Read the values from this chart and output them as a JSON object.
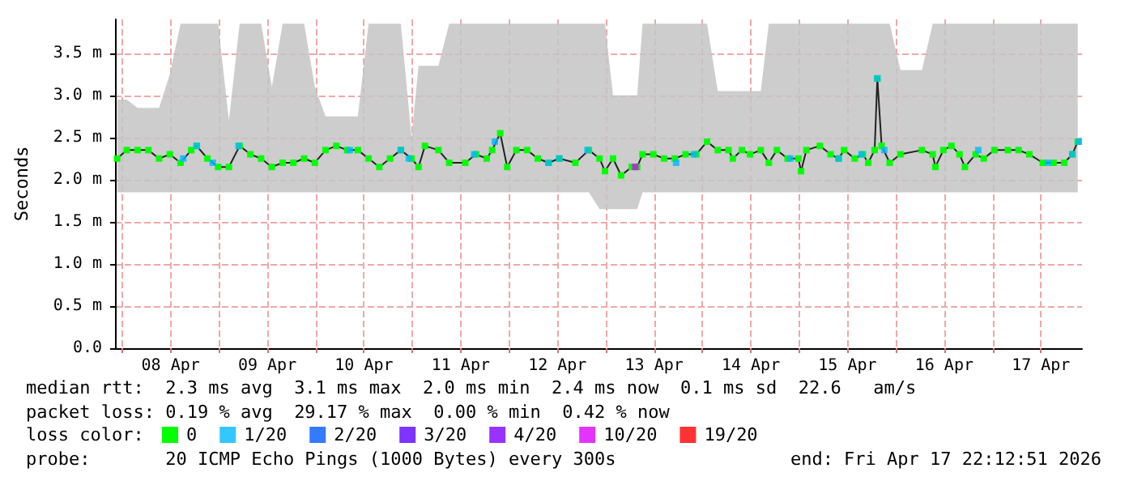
{
  "chart_data": {
    "type": "line",
    "ylabel": "Seconds",
    "legend_title": "loss color:",
    "legend": "bottom",
    "grid": true,
    "marker": "square",
    "line_style": "solid",
    "annotations": [
      "median rtt:  2.3 ms avg  3.1 ms max  2.0 ms min  2.4 ms now  0.1 ms sd  22.6   am/s",
      "packet loss: 0.19 % avg  29.17 % max  0.00 % min  0.42 % now",
      "probe:       20 ICMP Echo Pings (1000 Bytes) every 300s",
      "end: Fri Apr 17 22:12:51 2026"
    ],
    "xlim": [
      "2026-04-07T22:12",
      "2026-04-17T22:12"
    ],
    "xticks": [
      {
        "value": "2026-04-08T00:00",
        "label": null
      },
      {
        "value": "2026-04-08T12:00",
        "label": "08 Apr"
      },
      {
        "value": "2026-04-09T00:00",
        "label": null
      },
      {
        "value": "2026-04-09T12:00",
        "label": "09 Apr"
      },
      {
        "value": "2026-04-10T00:00",
        "label": null
      },
      {
        "value": "2026-04-10T12:00",
        "label": "10 Apr"
      },
      {
        "value": "2026-04-11T00:00",
        "label": null
      },
      {
        "value": "2026-04-11T12:00",
        "label": "11 Apr"
      },
      {
        "value": "2026-04-12T00:00",
        "label": null
      },
      {
        "value": "2026-04-12T12:00",
        "label": "12 Apr"
      },
      {
        "value": "2026-04-13T00:00",
        "label": null
      },
      {
        "value": "2026-04-13T12:00",
        "label": "13 Apr"
      },
      {
        "value": "2026-04-14T00:00",
        "label": null
      },
      {
        "value": "2026-04-14T12:00",
        "label": "14 Apr"
      },
      {
        "value": "2026-04-15T00:00",
        "label": null
      },
      {
        "value": "2026-04-15T12:00",
        "label": "15 Apr"
      },
      {
        "value": "2026-04-16T00:00",
        "label": null
      },
      {
        "value": "2026-04-16T12:00",
        "label": "16 Apr"
      },
      {
        "value": "2026-04-17T00:00",
        "label": null
      },
      {
        "value": "2026-04-17T12:00",
        "label": "17 Apr"
      }
    ],
    "ylim": [
      0,
      3.9
    ],
    "yticks": [
      {
        "value": 0,
        "label": "0.0"
      },
      {
        "value": 0.5,
        "label": "0.5 m"
      },
      {
        "value": 1,
        "label": "1.0 m"
      },
      {
        "value": 1.5,
        "label": "1.5 m"
      },
      {
        "value": 2,
        "label": "2.0 m"
      },
      {
        "value": 2.5,
        "label": "2.5 m"
      },
      {
        "value": 3,
        "label": "3.0 m"
      },
      {
        "value": 3.5,
        "label": "3.5 m"
      }
    ],
    "series": [
      {
        "name": "0",
        "color": "#00ff00",
        "x": [
          "2026-04-07T22:44",
          "2026-04-08T01:08",
          "2026-04-08T03:48",
          "2026-04-08T06:28",
          "2026-04-08T09:08",
          "2026-04-08T11:48",
          "2026-04-08T14:28",
          "2026-04-08T17:08",
          "2026-04-08T18:28",
          "2026-04-08T21:08",
          "2026-04-08T23:48",
          "2026-04-09T02:28",
          "2026-04-09T05:08",
          "2026-04-09T07:48",
          "2026-04-09T10:28",
          "2026-04-09T13:08",
          "2026-04-09T15:48",
          "2026-04-09T18:28",
          "2026-04-09T21:08",
          "2026-04-09T23:48",
          "2026-04-10T02:28",
          "2026-04-10T05:08",
          "2026-04-10T07:48",
          "2026-04-10T10:28",
          "2026-04-10T13:08",
          "2026-04-10T15:48",
          "2026-04-10T18:28",
          "2026-04-10T21:08",
          "2026-04-10T23:48",
          "2026-04-11T01:32",
          "2026-04-11T03:08",
          "2026-04-11T06:28",
          "2026-04-11T09:08",
          "2026-04-11T13:08",
          "2026-04-11T15:48",
          "2026-04-11T18:28",
          "2026-04-11T19:48",
          "2026-04-11T21:48",
          "2026-04-11T23:32",
          "2026-04-12T01:48",
          "2026-04-12T04:28",
          "2026-04-12T07:08",
          "2026-04-12T09:48",
          "2026-04-12T12:28",
          "2026-04-12T16:28",
          "2026-04-12T19:48",
          "2026-04-12T22:28",
          "2026-04-12T23:48",
          "2026-04-13T01:48",
          "2026-04-13T03:48",
          "2026-04-13T06:28",
          "2026-04-13T07:48",
          "2026-04-13T09:08",
          "2026-04-13T11:48",
          "2026-04-13T14:28",
          "2026-04-13T17:08",
          "2026-04-13T19:48",
          "2026-04-13T22:28",
          "2026-04-14T01:08",
          "2026-04-14T03:48",
          "2026-04-14T06:28",
          "2026-04-14T07:32",
          "2026-04-14T09:48",
          "2026-04-14T11:48",
          "2026-04-14T14:28",
          "2026-04-14T16:28",
          "2026-04-14T18:28",
          "2026-04-14T21:08",
          "2026-04-14T23:48",
          "2026-04-15T00:28",
          "2026-04-15T01:48",
          "2026-04-15T05:08",
          "2026-04-15T07:48",
          "2026-04-15T09:48",
          "2026-04-15T11:08",
          "2026-04-15T13:48",
          "2026-04-15T15:48",
          "2026-04-15T17:08",
          "2026-04-15T18:44",
          "2026-04-15T19:24",
          "2026-04-15T20:28",
          "2026-04-15T22:28",
          "2026-04-16T01:08",
          "2026-04-16T06:28",
          "2026-04-16T09:08",
          "2026-04-16T09:48",
          "2026-04-16T11:48",
          "2026-04-16T13:48",
          "2026-04-16T15:48",
          "2026-04-16T17:08",
          "2026-04-16T19:48",
          "2026-04-16T21:48",
          "2026-04-17T00:28",
          "2026-04-17T03:48",
          "2026-04-17T06:28",
          "2026-04-17T09:08",
          "2026-04-17T12:28",
          "2026-04-17T15:08",
          "2026-04-17T17:48",
          "2026-04-17T19:48",
          "2026-04-17T21:08"
        ],
        "values": [
          2.25,
          2.35,
          2.35,
          2.35,
          2.25,
          2.3,
          2.2,
          2.35,
          2.4,
          2.25,
          2.15,
          2.15,
          2.4,
          2.3,
          2.25,
          2.15,
          2.2,
          2.2,
          2.25,
          2.2,
          2.35,
          2.4,
          2.35,
          2.35,
          2.25,
          2.15,
          2.25,
          2.35,
          2.25,
          2.15,
          2.4,
          2.35,
          2.2,
          2.2,
          2.3,
          2.25,
          2.35,
          2.55,
          2.15,
          2.35,
          2.35,
          2.25,
          2.2,
          2.25,
          2.2,
          2.35,
          2.25,
          2.1,
          2.25,
          2.05,
          2.15,
          2.15,
          2.3,
          2.3,
          2.25,
          2.25,
          2.3,
          2.3,
          2.45,
          2.35,
          2.35,
          2.25,
          2.35,
          2.3,
          2.35,
          2.2,
          2.35,
          2.25,
          2.25,
          2.1,
          2.35,
          2.4,
          2.3,
          2.25,
          2.35,
          2.25,
          2.3,
          2.2,
          2.35,
          3.2,
          2.4,
          2.2,
          2.3,
          2.35,
          2.3,
          2.15,
          2.35,
          2.4,
          2.3,
          2.15,
          2.3,
          2.25,
          2.35,
          2.35,
          2.35,
          2.3,
          2.2,
          2.2,
          2.2,
          2.3,
          2.45
        ],
        "lower": [
          1.85,
          1.85,
          1.85,
          1.85,
          1.85,
          1.85,
          1.85,
          1.85,
          1.85,
          1.85,
          1.85,
          1.85,
          1.85,
          1.85,
          1.85,
          1.85,
          1.85,
          1.85,
          1.85,
          1.85,
          1.85,
          1.85,
          1.85,
          1.85,
          1.85,
          1.85,
          1.85,
          1.85,
          1.85,
          1.85,
          1.85,
          1.85,
          1.85,
          1.85,
          1.85,
          1.85,
          1.85,
          1.85,
          1.85,
          1.85,
          1.85,
          1.85,
          1.85,
          1.85,
          1.85,
          1.85,
          1.65,
          1.65,
          1.65,
          1.65,
          1.65,
          1.65,
          1.85,
          1.85,
          1.85,
          1.85,
          1.85,
          1.85,
          1.85,
          1.85,
          1.85,
          1.85,
          1.85,
          1.85,
          1.85,
          1.85,
          1.85,
          1.85,
          1.85,
          1.85,
          1.85,
          1.85,
          1.85,
          1.85,
          1.85,
          1.85,
          1.85,
          1.85,
          1.85,
          1.85,
          1.85,
          1.85,
          1.85,
          1.85,
          1.85,
          1.85,
          1.85,
          1.85,
          1.85,
          1.85,
          1.85,
          1.85,
          1.85,
          1.85,
          1.85,
          1.85,
          1.85,
          1.85,
          1.85,
          1.85,
          1.85
        ],
        "upper": [
          2.95,
          2.95,
          2.85,
          2.85,
          2.85,
          3.25,
          3.85,
          3.85,
          3.85,
          3.85,
          3.85,
          2.7,
          3.85,
          3.85,
          3.85,
          3.1,
          3.85,
          3.85,
          3.85,
          3.1,
          2.75,
          2.75,
          2.75,
          2.75,
          3.85,
          3.85,
          3.85,
          3.85,
          2.5,
          3.35,
          3.35,
          3.35,
          3.85,
          3.85,
          3.85,
          3.85,
          3.85,
          3.85,
          3.85,
          3.85,
          3.85,
          3.85,
          3.85,
          3.85,
          3.85,
          3.85,
          3.85,
          3.85,
          3,
          3,
          3,
          3,
          3.85,
          3.85,
          3.85,
          3.85,
          3.85,
          3.85,
          3.85,
          3.05,
          3.05,
          3.05,
          3.05,
          3.05,
          3.05,
          3.85,
          3.85,
          3.85,
          3.85,
          3.85,
          3.85,
          3.85,
          3.85,
          3.85,
          3.85,
          3.85,
          3.85,
          3.85,
          3.85,
          3.85,
          3.85,
          3.85,
          3.3,
          3.3,
          3.85,
          3.85,
          3.85,
          3.85,
          3.85,
          3.85,
          3.85,
          3.85,
          3.85,
          3.85,
          3.85,
          3.85,
          3.85,
          3.85,
          3.85,
          3.85,
          3.85
        ]
      },
      {
        "name": "1/20",
        "type": "scatter",
        "color": "#00b8ff",
        "x": [
          "2026-04-08T15:08",
          "2026-04-08T18:28",
          "2026-04-08T22:28",
          "2026-04-09T04:52",
          "2026-04-10T08:28",
          "2026-04-10T21:08",
          "2026-04-10T23:08",
          "2026-04-11T15:20",
          "2026-04-11T20:28",
          "2026-04-12T09:48",
          "2026-04-12T12:28",
          "2026-04-12T19:28",
          "2026-04-13T17:28",
          "2026-04-13T21:52",
          "2026-04-14T21:48",
          "2026-04-15T09:48",
          "2026-04-15T15:28",
          "2026-04-15T19:24",
          "2026-04-15T21:08",
          "2026-04-16T20:28",
          "2026-04-17T13:44",
          "2026-04-17T19:48",
          "2026-04-17T21:24"
        ],
        "values": [
          2.25,
          2.4,
          2.2,
          2.4,
          2.35,
          2.35,
          2.25,
          2.3,
          2.45,
          2.2,
          2.25,
          2.35,
          2.2,
          2.3,
          2.25,
          2.25,
          2.3,
          3.2,
          2.35,
          2.35,
          2.2,
          2.3,
          2.45
        ]
      },
      {
        "name": "2/20",
        "type": "scatter",
        "color": "#0059ff"
      },
      {
        "name": "3/20",
        "type": "scatter",
        "color": "#5e00ff"
      },
      {
        "name": "4/20",
        "type": "scatter",
        "color": "#7e00ff"
      },
      {
        "name": "10/20",
        "type": "scatter",
        "color": "#dd00ff",
        "x": [
          "2026-04-13T07:20"
        ],
        "values": [
          2.15
        ]
      },
      {
        "name": "19/20",
        "type": "scatter",
        "color": "#ff0000"
      }
    ]
  }
}
